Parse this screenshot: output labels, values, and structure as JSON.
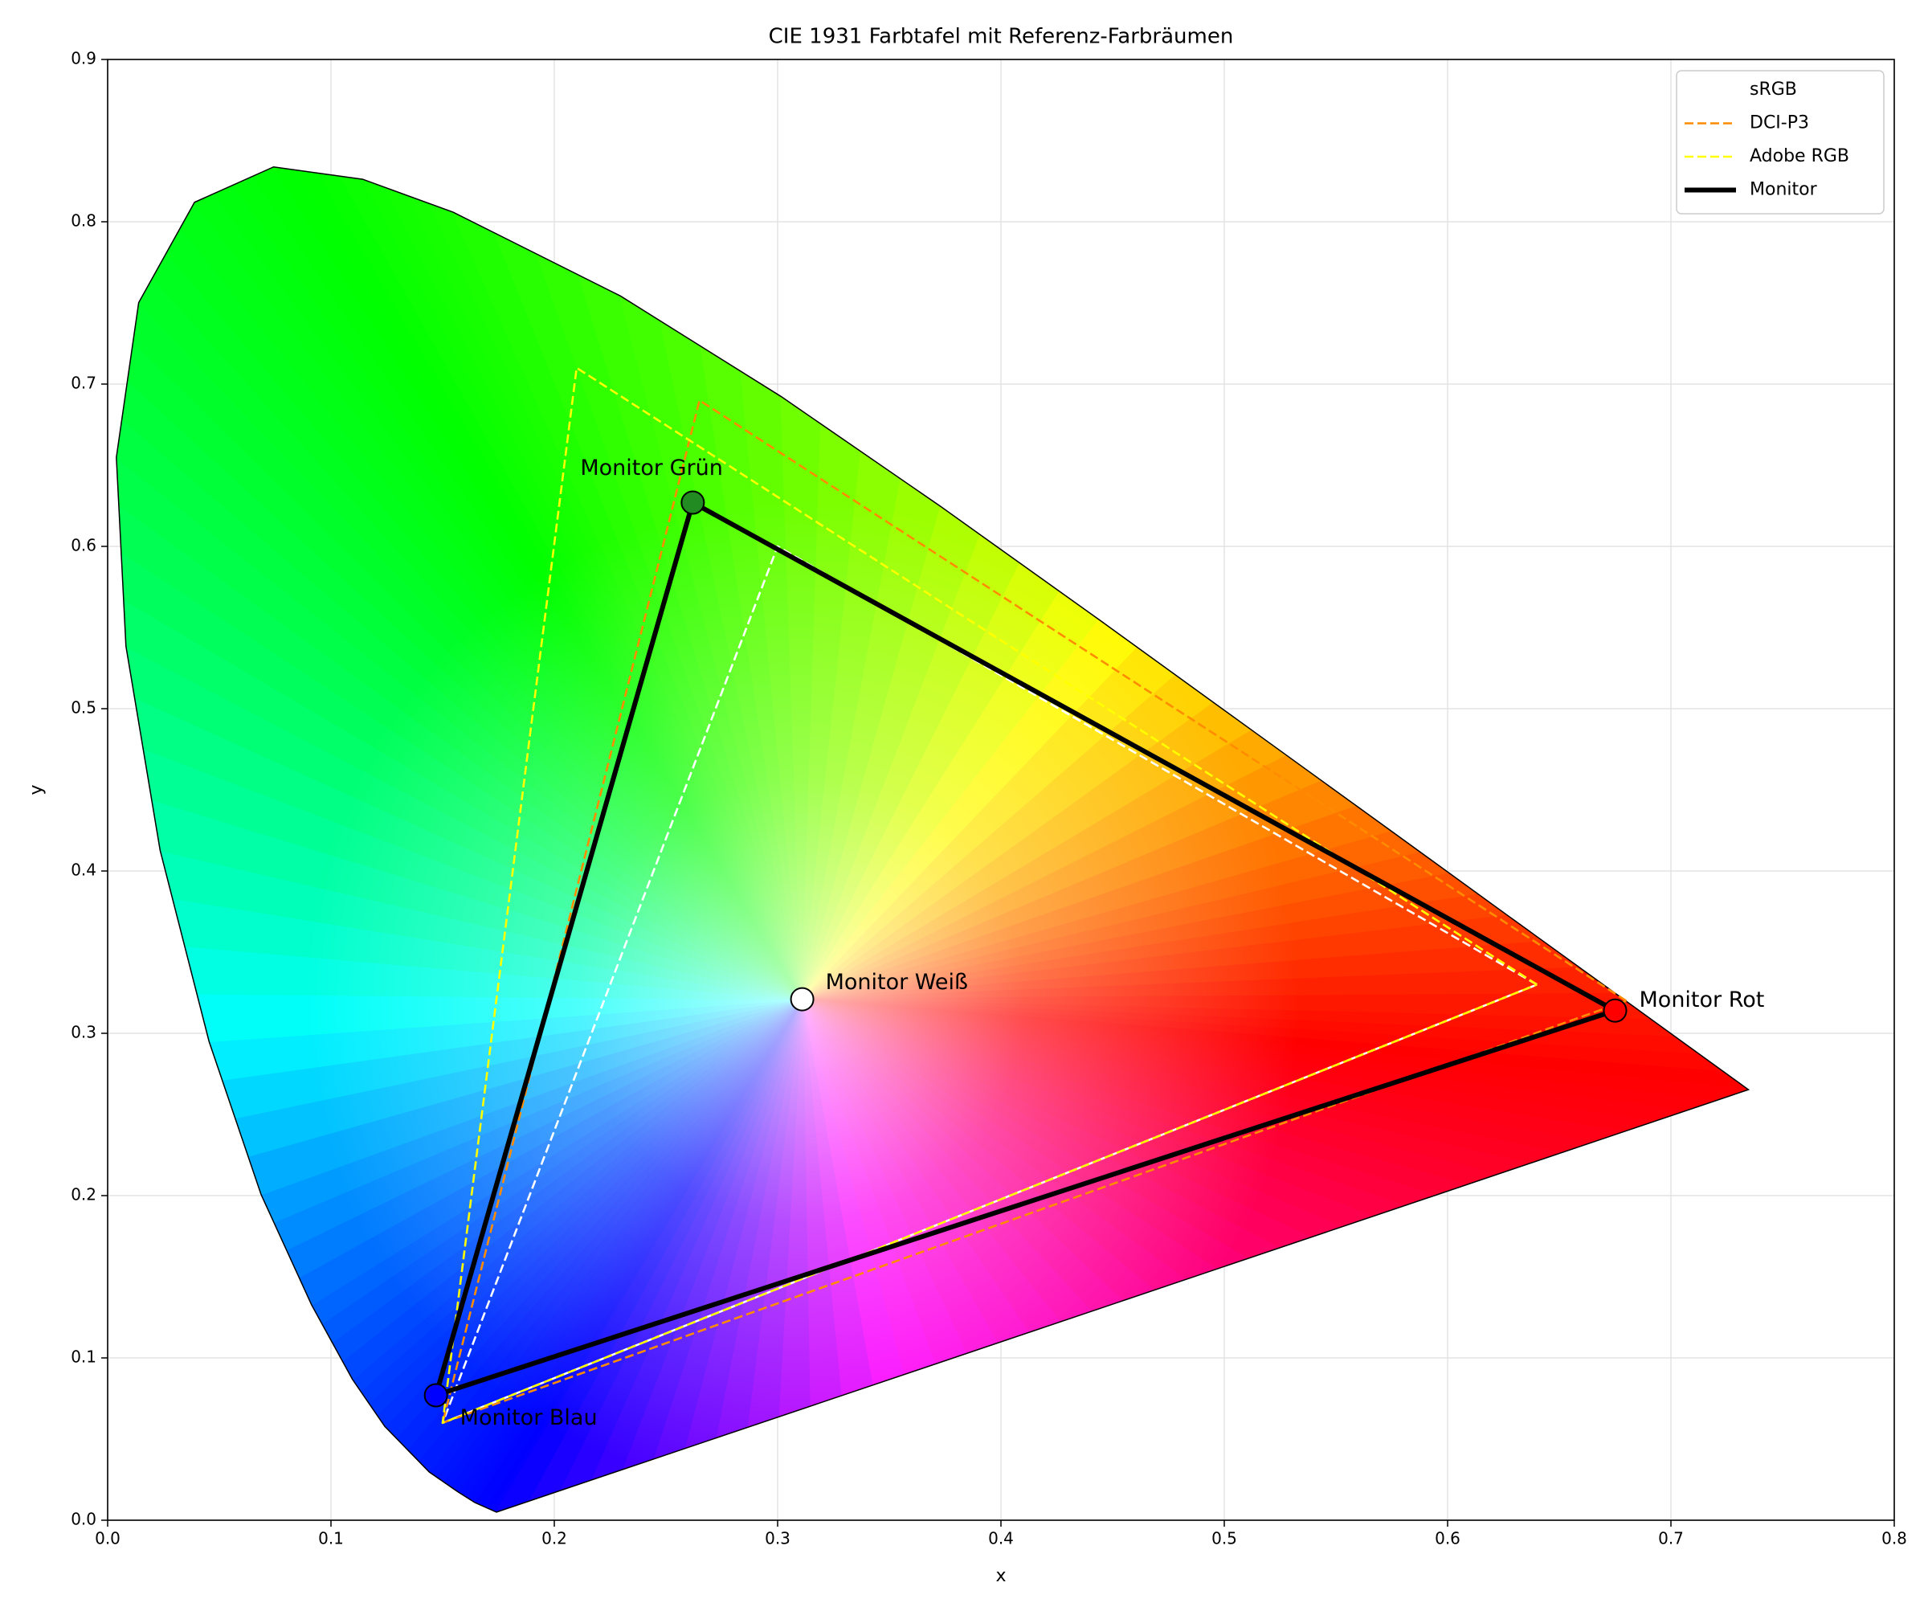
{
  "chart_data": {
    "type": "chromaticity",
    "title": "CIE 1931 Farbtafel mit Referenz-Farbräumen",
    "x_label": "x",
    "y_label": "y",
    "xlim": [
      0,
      0.8
    ],
    "ylim": [
      0,
      0.9
    ],
    "xticks": [
      {
        "value": 0,
        "label": "0.0"
      },
      0.1,
      0.2,
      0.3,
      0.4,
      0.5,
      0.6,
      0.7,
      0.8
    ],
    "yticks": [
      {
        "value": 0,
        "label": "0.0"
      },
      0.1,
      0.2,
      0.3,
      0.4,
      0.5,
      0.6,
      0.7,
      0.8,
      0.9
    ],
    "grid": true,
    "legend": "upper right",
    "spectral_locus": {
      "x": [
        0.1741,
        0.1644,
        0.1566,
        0.144,
        0.1241,
        0.1096,
        0.0913,
        0.0687,
        0.0454,
        0.0235,
        0.0082,
        0.0039,
        0.0139,
        0.0389,
        0.0743,
        0.1142,
        0.1547,
        0.2296,
        0.3016,
        0.3731,
        0.4441,
        0.5125,
        0.5752,
        0.627,
        0.6915,
        0.7347
      ],
      "y": [
        0.005,
        0.0109,
        0.0177,
        0.0297,
        0.0578,
        0.0868,
        0.1327,
        0.2007,
        0.295,
        0.4127,
        0.5384,
        0.6548,
        0.7502,
        0.812,
        0.8338,
        0.8262,
        0.8059,
        0.7543,
        0.6923,
        0.6245,
        0.5547,
        0.4866,
        0.4242,
        0.3725,
        0.3083,
        0.2653
      ]
    },
    "series": [
      {
        "name": "sRGB",
        "color": "#ffffff",
        "dashed": true,
        "x": [
          0.64,
          0.3,
          0.15,
          0.64
        ],
        "values": [
          0.33,
          0.6,
          0.06,
          0.33
        ]
      },
      {
        "name": "DCI-P3",
        "color": "#ff8c00",
        "dashed": true,
        "x": [
          0.68,
          0.265,
          0.15,
          0.68
        ],
        "values": [
          0.32,
          0.69,
          0.06,
          0.32
        ]
      },
      {
        "name": "Adobe RGB",
        "color": "#ffff00",
        "dashed": true,
        "x": [
          0.64,
          0.21,
          0.15,
          0.64
        ],
        "values": [
          0.33,
          0.71,
          0.06,
          0.33
        ]
      },
      {
        "name": "Monitor",
        "color": "#000000",
        "dashed": false,
        "x": [
          0.675,
          0.262,
          0.147,
          0.675
        ],
        "values": [
          0.314,
          0.627,
          0.077,
          0.314
        ]
      }
    ],
    "points": [
      {
        "label": "Monitor Rot",
        "x": 0.675,
        "y": 0.314,
        "color": "#ff0000"
      },
      {
        "label": "Monitor Grün",
        "x": 0.262,
        "y": 0.627,
        "color": "#228b22"
      },
      {
        "label": "Monitor Blau",
        "x": 0.147,
        "y": 0.077,
        "color": "#0000ff"
      },
      {
        "label": "Monitor Weiß",
        "x": 0.311,
        "y": 0.321,
        "color": "#ffffff"
      }
    ]
  }
}
